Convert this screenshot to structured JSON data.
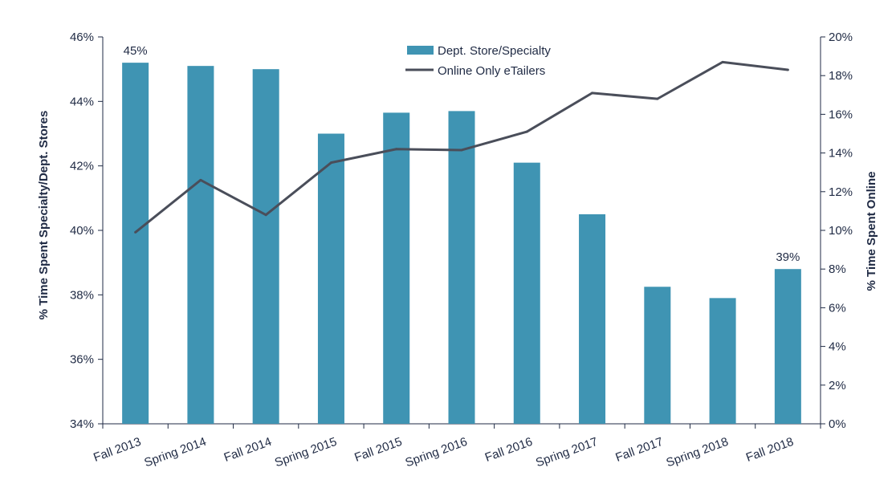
{
  "chart_data": {
    "type": "bar+line",
    "categories": [
      "Fall 2013",
      "Spring 2014",
      "Fall 2014",
      "Spring 2015",
      "Fall 2015",
      "Spring 2016",
      "Fall 2016",
      "Spring 2017",
      "Fall 2017",
      "Spring 2018",
      "Fall 2018"
    ],
    "series": [
      {
        "name": "Dept. Store/Specialty",
        "type": "bar",
        "axis": "left",
        "color": "#3f94b3",
        "values": [
          45.2,
          45.1,
          45.0,
          43.0,
          43.65,
          43.7,
          42.1,
          40.5,
          38.25,
          37.9,
          38.8
        ]
      },
      {
        "name": "Online Only eTailers",
        "type": "line",
        "axis": "right",
        "color": "#4a4e5a",
        "values": [
          9.9,
          12.6,
          10.8,
          13.5,
          14.2,
          14.15,
          15.1,
          17.1,
          16.8,
          18.7,
          18.3
        ]
      }
    ],
    "y_left": {
      "label": "% Time Spent Specialty/Dept. Stores",
      "ylim": [
        34,
        46
      ],
      "ticks": [
        "34%",
        "36%",
        "38%",
        "40%",
        "42%",
        "44%",
        "46%"
      ]
    },
    "y_right": {
      "label": "% Time Spent Online",
      "ylim": [
        0,
        20
      ],
      "ticks": [
        "0%",
        "2%",
        "4%",
        "6%",
        "8%",
        "10%",
        "12%",
        "14%",
        "16%",
        "18%",
        "20%"
      ]
    },
    "annotations": [
      {
        "category_index": 0,
        "text": "45%"
      },
      {
        "category_index": 10,
        "text": "39%"
      }
    ],
    "legend_placement": "top-center",
    "grid": false
  }
}
